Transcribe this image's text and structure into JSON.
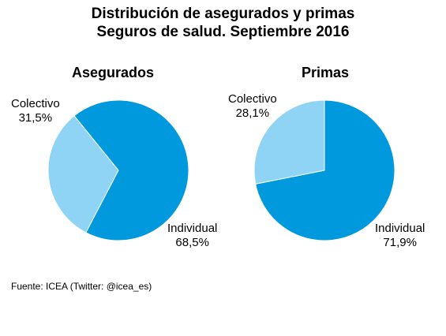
{
  "title": {
    "line1": "Distribución  de asegurados y primas",
    "line2": "Seguros de salud. Septiembre 2016"
  },
  "source": "Fuente: ICEA (Twitter:  @icea_es)",
  "colors": {
    "individual": "#0099DE",
    "colectivo": "#8FD3F5"
  },
  "chart_data": [
    {
      "type": "pie",
      "title": "Asegurados",
      "slices": [
        {
          "label": "Individual",
          "value_label": "68,5%",
          "value": 68.5
        },
        {
          "label": "Colectivo",
          "value_label": "31,5%",
          "value": 31.5
        }
      ]
    },
    {
      "type": "pie",
      "title": "Primas",
      "slices": [
        {
          "label": "Individual",
          "value_label": "71,9%",
          "value": 71.9
        },
        {
          "label": "Colectivo",
          "value_label": "28,1%",
          "value": 28.1
        }
      ]
    }
  ]
}
